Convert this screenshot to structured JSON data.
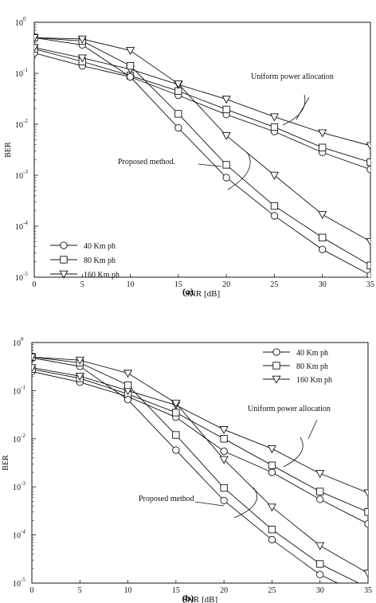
{
  "chart_data": [
    {
      "type": "line",
      "panel_label": "(a)",
      "xlabel": "SNR [dB]",
      "ylabel": "BER",
      "xlim": [
        0,
        35
      ],
      "ylim": [
        1e-05,
        1
      ],
      "y_scale": "log",
      "x_ticks": [
        0,
        5,
        10,
        15,
        20,
        25,
        30,
        35
      ],
      "y_tick_exponents": [
        0,
        -1,
        -2,
        -3,
        -4,
        -5
      ],
      "grid": false,
      "legend_position": "bottom-left",
      "series": [
        {
          "name": "40 Km ph",
          "marker": "circle",
          "group": "uniform",
          "x": [
            0,
            5,
            10,
            15,
            20,
            25,
            30,
            35
          ],
          "y": [
            0.25,
            0.14,
            0.085,
            0.037,
            0.0155,
            0.0072,
            0.0028,
            0.0013
          ]
        },
        {
          "name": "80 Km ph",
          "marker": "square",
          "group": "uniform",
          "x": [
            0,
            5,
            10,
            15,
            20,
            25,
            30,
            35
          ],
          "y": [
            0.3,
            0.17,
            0.09,
            0.045,
            0.0195,
            0.0088,
            0.0035,
            0.0018
          ]
        },
        {
          "name": "160 Km ph",
          "marker": "triangle",
          "group": "uniform",
          "x": [
            0,
            5,
            10,
            15,
            20,
            25,
            30,
            35
          ],
          "y": [
            0.32,
            0.2,
            0.12,
            0.06,
            0.031,
            0.014,
            0.0068,
            0.0038
          ]
        },
        {
          "name": "40 Km ph",
          "marker": "circle",
          "group": "proposed",
          "x": [
            0,
            5,
            10,
            15,
            20,
            25,
            30,
            35
          ],
          "y": [
            0.5,
            0.36,
            0.085,
            0.0085,
            0.0009,
            0.00016,
            3.5e-05,
            1.1e-05
          ]
        },
        {
          "name": "80 Km ph",
          "marker": "square",
          "group": "proposed",
          "x": [
            0,
            5,
            10,
            15,
            20,
            25,
            30,
            35
          ],
          "y": [
            0.5,
            0.43,
            0.14,
            0.016,
            0.0016,
            0.00025,
            6e-05,
            1.7e-05
          ]
        },
        {
          "name": "160 Km ph",
          "marker": "triangle",
          "group": "proposed",
          "x": [
            0,
            5,
            10,
            15,
            20,
            25,
            30,
            35
          ],
          "y": [
            0.5,
            0.47,
            0.28,
            0.062,
            0.006,
            0.001,
            0.00017,
            5e-05
          ]
        }
      ],
      "annotations": [
        "Uniform power allocation",
        "Proposed method."
      ]
    },
    {
      "type": "line",
      "panel_label": "(b)",
      "xlabel": "SNR [dB]",
      "ylabel": "BER",
      "xlim": [
        0,
        35
      ],
      "ylim": [
        1e-05,
        1
      ],
      "y_scale": "log",
      "x_ticks": [
        0,
        5,
        10,
        15,
        20,
        25,
        30,
        35
      ],
      "y_tick_exponents": [
        0,
        -1,
        -2,
        -3,
        -4,
        -5
      ],
      "grid": false,
      "legend_position": "top-right",
      "series": [
        {
          "name": "40 Km ph",
          "marker": "circle",
          "group": "uniform",
          "x": [
            0,
            5,
            10,
            15,
            20,
            25,
            30,
            35
          ],
          "y": [
            0.25,
            0.15,
            0.075,
            0.028,
            0.0055,
            0.002,
            0.00055,
            0.00017
          ]
        },
        {
          "name": "80 Km ph",
          "marker": "square",
          "group": "uniform",
          "x": [
            0,
            5,
            10,
            15,
            20,
            25,
            30,
            35
          ],
          "y": [
            0.28,
            0.18,
            0.085,
            0.035,
            0.01,
            0.0028,
            0.0008,
            0.0003
          ]
        },
        {
          "name": "160 Km ph",
          "marker": "triangle",
          "group": "uniform",
          "x": [
            0,
            5,
            10,
            15,
            20,
            25,
            30,
            35
          ],
          "y": [
            0.3,
            0.2,
            0.1,
            0.05,
            0.0155,
            0.0062,
            0.0019,
            0.00075
          ]
        },
        {
          "name": "40 Km ph",
          "marker": "circle",
          "group": "proposed",
          "x": [
            0,
            5,
            10,
            15,
            20,
            25,
            30,
            35
          ],
          "y": [
            0.48,
            0.32,
            0.065,
            0.0058,
            0.00052,
            8e-05,
            1.5e-05,
            5e-06
          ]
        },
        {
          "name": "80 Km ph",
          "marker": "square",
          "group": "proposed",
          "x": [
            0,
            5,
            10,
            15,
            20,
            25,
            30,
            35
          ],
          "y": [
            0.5,
            0.38,
            0.13,
            0.012,
            0.00095,
            0.00013,
            2.5e-05,
            8e-06
          ]
        },
        {
          "name": "160 Km ph",
          "marker": "triangle",
          "group": "proposed",
          "x": [
            0,
            5,
            10,
            15,
            20,
            25,
            30,
            35
          ],
          "y": [
            0.5,
            0.43,
            0.23,
            0.055,
            0.0037,
            0.00038,
            6e-05,
            1.6e-05
          ]
        }
      ],
      "annotations": [
        "Uniform power allocation",
        "Proposed method"
      ]
    }
  ]
}
